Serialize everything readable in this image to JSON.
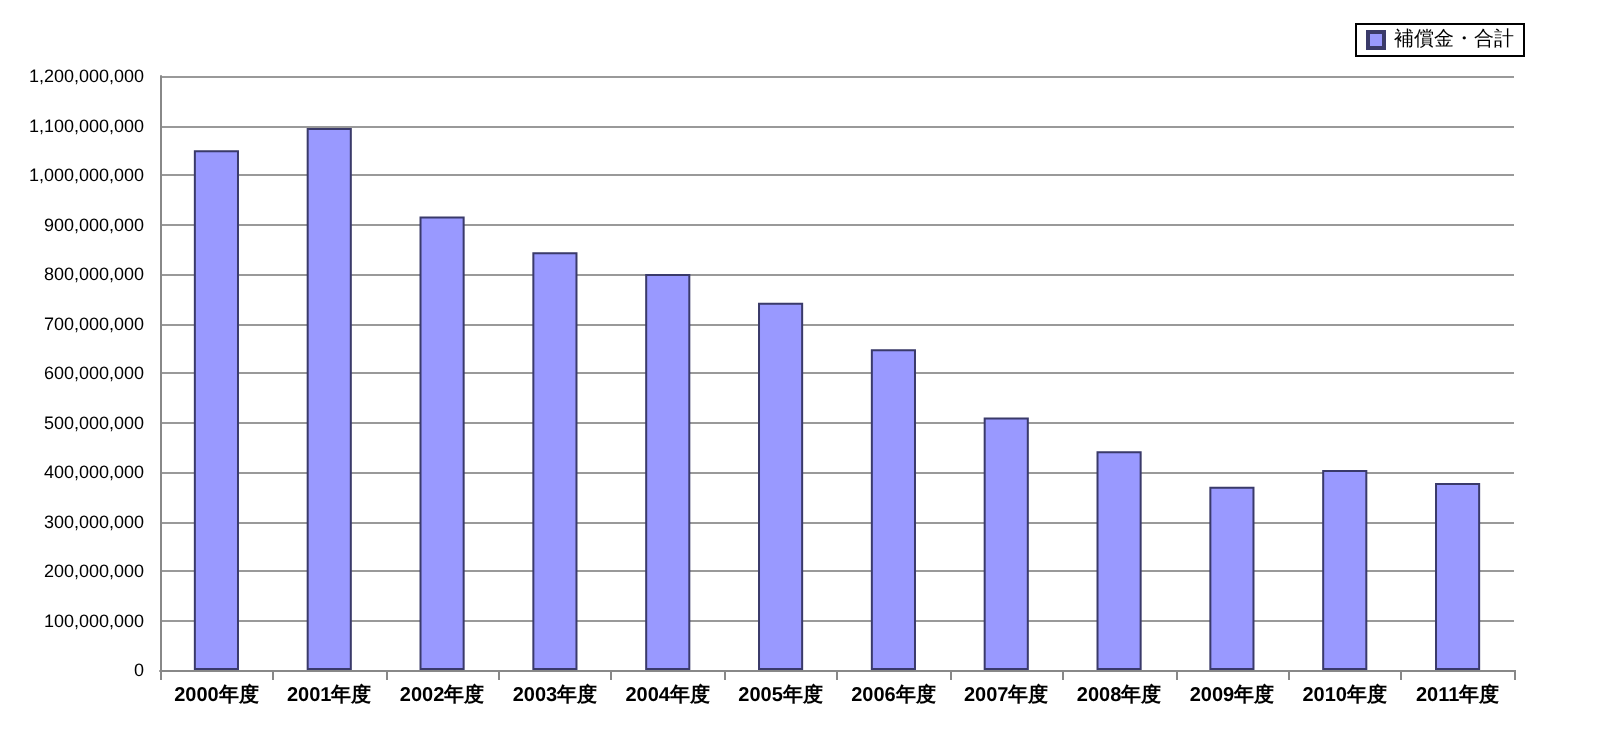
{
  "chart_data": {
    "type": "bar",
    "categories": [
      "2000年度",
      "2001年度",
      "2002年度",
      "2003年度",
      "2004年度",
      "2005年度",
      "2006年度",
      "2007年度",
      "2008年度",
      "2009年度",
      "2010年度",
      "2011年度"
    ],
    "series": [
      {
        "name": "補償金・合計",
        "color": "#9999ff",
        "values": [
          1050000000,
          1095000000,
          916000000,
          844000000,
          800000000,
          742000000,
          648000000,
          510000000,
          442000000,
          370000000,
          404000000,
          378000000
        ]
      }
    ],
    "ylim": [
      0,
      1200000000
    ],
    "yticks": [
      0,
      {
        "value": 100000000,
        "label": "100,000,000"
      },
      {
        "value": 200000000,
        "label": "200,000,000"
      },
      {
        "value": 300000000,
        "label": "300,000,000"
      },
      {
        "value": 400000000,
        "label": "400,000,000"
      },
      {
        "value": 500000000,
        "label": "500,000,000"
      },
      {
        "value": 600000000,
        "label": "600,000,000"
      },
      {
        "value": 700000000,
        "label": "700,000,000"
      },
      {
        "value": 800000000,
        "label": "800,000,000"
      },
      {
        "value": 900000000,
        "label": "900,000,000"
      },
      {
        "value": 1000000000,
        "label": "1,000,000,000"
      },
      {
        "value": 1100000000,
        "label": "1,100,000,000"
      },
      {
        "value": 1200000000,
        "label": "1,200,000,000"
      }
    ],
    "grid": "y",
    "legend": "top right"
  }
}
